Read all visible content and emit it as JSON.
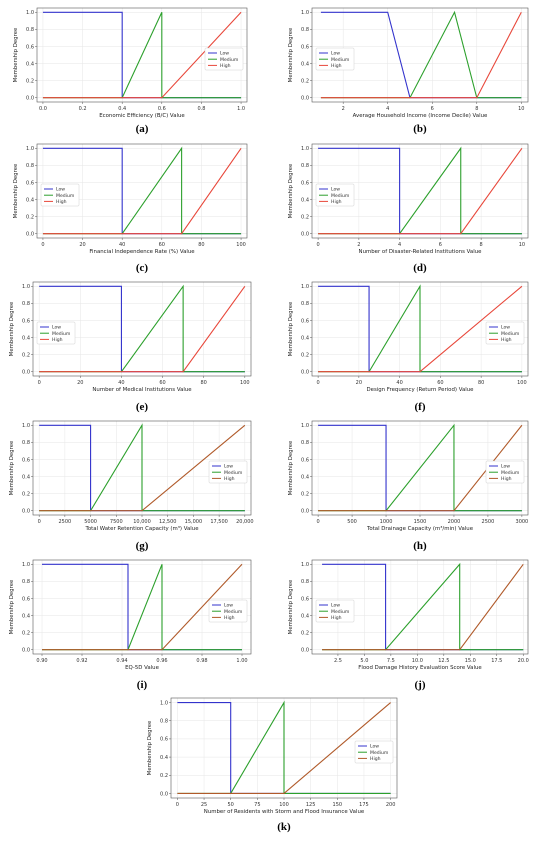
{
  "colors": {
    "low": "#3333cc",
    "medium": "#2ca02c",
    "high": "#e8473a",
    "high_alt": "#b05a2a"
  },
  "chart_data": [
    {
      "label": "(a)",
      "type": "line",
      "xlabel": "Economic Efficiency (B/C) Value",
      "ylabel": "Membership Degree",
      "xlim": [
        -0.03,
        1.03
      ],
      "ylim": [
        -0.05,
        1.05
      ],
      "xticks": [
        0.0,
        0.2,
        0.4,
        0.6,
        0.8,
        1.0
      ],
      "xtick_labels": [
        "0.0",
        "0.2",
        "0.4",
        "0.6",
        "0.8",
        "1.0"
      ],
      "yticks": [
        0.0,
        0.2,
        0.4,
        0.6,
        0.8,
        1.0
      ],
      "ytick_labels": [
        "0.0",
        "0.2",
        "0.4",
        "0.6",
        "0.8",
        "1.0"
      ],
      "legend": "center-right",
      "grid": true,
      "series": [
        {
          "name": "Low",
          "color": "low",
          "x": [
            0.0,
            0.4,
            0.4,
            1.0
          ],
          "y": [
            1,
            1,
            0,
            0
          ]
        },
        {
          "name": "Medium",
          "color": "medium",
          "x": [
            0.0,
            0.4,
            0.6,
            0.6,
            1.0
          ],
          "y": [
            0,
            0,
            1,
            0,
            0
          ]
        },
        {
          "name": "High",
          "color": "high",
          "x": [
            0.0,
            0.6,
            1.0
          ],
          "y": [
            0,
            0,
            1
          ]
        }
      ]
    },
    {
      "label": "(b)",
      "type": "line",
      "xlabel": "Average Household Income (Income Decile) Value",
      "ylabel": "Membership Degree",
      "xlim": [
        0.6,
        10.3
      ],
      "ylim": [
        -0.05,
        1.05
      ],
      "xticks": [
        2,
        4,
        6,
        8,
        10
      ],
      "xtick_labels": [
        "2",
        "4",
        "6",
        "8",
        "10"
      ],
      "yticks": [
        0.0,
        0.2,
        0.4,
        0.6,
        0.8,
        1.0
      ],
      "ytick_labels": [
        "0.0",
        "0.2",
        "0.4",
        "0.6",
        "0.8",
        "1.0"
      ],
      "legend": "center-left",
      "grid": true,
      "series": [
        {
          "name": "Low",
          "color": "low",
          "x": [
            1,
            4,
            5,
            10
          ],
          "y": [
            1,
            1,
            0,
            0
          ]
        },
        {
          "name": "Medium",
          "color": "medium",
          "x": [
            1,
            5,
            7,
            8,
            10
          ],
          "y": [
            0,
            0,
            1,
            0,
            0
          ]
        },
        {
          "name": "High",
          "color": "high",
          "x": [
            1,
            8,
            10
          ],
          "y": [
            0,
            0,
            1
          ]
        }
      ]
    },
    {
      "label": "(c)",
      "type": "line",
      "xlabel": "Financial Independence Rate (%) Value",
      "ylabel": "Membership Degree",
      "xlim": [
        -3,
        103
      ],
      "ylim": [
        -0.05,
        1.05
      ],
      "xticks": [
        0,
        20,
        40,
        60,
        80,
        100
      ],
      "xtick_labels": [
        "0",
        "20",
        "40",
        "60",
        "80",
        "100"
      ],
      "yticks": [
        0.0,
        0.2,
        0.4,
        0.6,
        0.8,
        1.0
      ],
      "ytick_labels": [
        "0.0",
        "0.2",
        "0.4",
        "0.6",
        "0.8",
        "1.0"
      ],
      "legend": "center-left",
      "grid": true,
      "series": [
        {
          "name": "Low",
          "color": "low",
          "x": [
            0,
            40,
            40,
            100
          ],
          "y": [
            1,
            1,
            0,
            0
          ]
        },
        {
          "name": "Medium",
          "color": "medium",
          "x": [
            0,
            40,
            70,
            70,
            100
          ],
          "y": [
            0,
            0,
            1,
            0,
            0
          ]
        },
        {
          "name": "High",
          "color": "high",
          "x": [
            0,
            70,
            100
          ],
          "y": [
            0,
            0,
            1
          ]
        }
      ]
    },
    {
      "label": "(d)",
      "type": "line",
      "xlabel": "Number of Disaster-Related Institutions Value",
      "ylabel": "Membership Degree",
      "xlim": [
        -0.3,
        10.3
      ],
      "ylim": [
        -0.05,
        1.05
      ],
      "xticks": [
        0,
        2,
        4,
        6,
        8,
        10
      ],
      "xtick_labels": [
        "0",
        "2",
        "4",
        "6",
        "8",
        "10"
      ],
      "yticks": [
        0.0,
        0.2,
        0.4,
        0.6,
        0.8,
        1.0
      ],
      "ytick_labels": [
        "0.0",
        "0.2",
        "0.4",
        "0.6",
        "0.8",
        "1.0"
      ],
      "legend": "center-left",
      "grid": true,
      "series": [
        {
          "name": "Low",
          "color": "low",
          "x": [
            0,
            4,
            4,
            10
          ],
          "y": [
            1,
            1,
            0,
            0
          ]
        },
        {
          "name": "Medium",
          "color": "medium",
          "x": [
            0,
            4,
            7,
            7,
            10
          ],
          "y": [
            0,
            0,
            1,
            0,
            0
          ]
        },
        {
          "name": "High",
          "color": "high",
          "x": [
            0,
            7,
            10
          ],
          "y": [
            0,
            0,
            1
          ]
        }
      ]
    },
    {
      "label": "(e)",
      "type": "line",
      "xlabel": "Number of Medical Institutions Value",
      "ylabel": "Membership Degree",
      "xlim": [
        -3,
        103
      ],
      "ylim": [
        -0.05,
        1.05
      ],
      "xticks": [
        0,
        20,
        40,
        60,
        80,
        100
      ],
      "xtick_labels": [
        "0",
        "20",
        "40",
        "60",
        "80",
        "100"
      ],
      "yticks": [
        0.0,
        0.2,
        0.4,
        0.6,
        0.8,
        1.0
      ],
      "ytick_labels": [
        "0.0",
        "0.2",
        "0.4",
        "0.6",
        "0.8",
        "1.0"
      ],
      "legend": "center-left",
      "grid": true,
      "series": [
        {
          "name": "Low",
          "color": "low",
          "x": [
            0,
            40,
            40,
            100
          ],
          "y": [
            1,
            1,
            0,
            0
          ]
        },
        {
          "name": "Medium",
          "color": "medium",
          "x": [
            0,
            40,
            70,
            70,
            100
          ],
          "y": [
            0,
            0,
            1,
            0,
            0
          ]
        },
        {
          "name": "High",
          "color": "high",
          "x": [
            0,
            70,
            100
          ],
          "y": [
            0,
            0,
            1
          ]
        }
      ]
    },
    {
      "label": "(f)",
      "type": "line",
      "xlabel": "Design Frequency (Return Period) Value",
      "ylabel": "Membership Degree",
      "xlim": [
        -3,
        103
      ],
      "ylim": [
        -0.05,
        1.05
      ],
      "xticks": [
        0,
        20,
        40,
        60,
        80,
        100
      ],
      "xtick_labels": [
        "0",
        "20",
        "40",
        "60",
        "80",
        "100"
      ],
      "yticks": [
        0.0,
        0.2,
        0.4,
        0.6,
        0.8,
        1.0
      ],
      "ytick_labels": [
        "0.0",
        "0.2",
        "0.4",
        "0.6",
        "0.8",
        "1.0"
      ],
      "legend": "center-right",
      "grid": true,
      "series": [
        {
          "name": "Low",
          "color": "low",
          "x": [
            0,
            25,
            25,
            100
          ],
          "y": [
            1,
            1,
            0,
            0
          ]
        },
        {
          "name": "Medium",
          "color": "medium",
          "x": [
            0,
            25,
            50,
            50,
            100
          ],
          "y": [
            0,
            0,
            1,
            0,
            0
          ]
        },
        {
          "name": "High",
          "color": "high",
          "x": [
            0,
            50,
            100
          ],
          "y": [
            0,
            0,
            1
          ]
        }
      ]
    },
    {
      "label": "(g)",
      "type": "line",
      "xlabel": "Total Water Retention Capacity (m³) Value",
      "ylabel": "Membership Degree",
      "xlim": [
        -600,
        20600
      ],
      "ylim": [
        -0.05,
        1.05
      ],
      "xticks": [
        0,
        2500,
        5000,
        7500,
        10000,
        12500,
        15000,
        17500,
        20000
      ],
      "xtick_labels": [
        "0",
        "2500",
        "5000",
        "7500",
        "10,000",
        "12,500",
        "15,000",
        "17,500",
        "20,000"
      ],
      "yticks": [
        0.0,
        0.2,
        0.4,
        0.6,
        0.8,
        1.0
      ],
      "ytick_labels": [
        "0.0",
        "0.2",
        "0.4",
        "0.6",
        "0.8",
        "1.0"
      ],
      "legend": "center-right",
      "grid": true,
      "series": [
        {
          "name": "Low",
          "color": "low",
          "x": [
            0,
            5000,
            5000,
            20000
          ],
          "y": [
            1,
            1,
            0,
            0
          ]
        },
        {
          "name": "Medium",
          "color": "medium",
          "x": [
            0,
            5000,
            10000,
            10000,
            20000
          ],
          "y": [
            0,
            0,
            1,
            0,
            0
          ]
        },
        {
          "name": "High",
          "color": "high_alt",
          "x": [
            0,
            10000,
            20000
          ],
          "y": [
            0,
            0,
            1
          ]
        }
      ]
    },
    {
      "label": "(h)",
      "type": "line",
      "xlabel": "Total Drainage Capacity (m³/min) Value",
      "ylabel": "Membership Degree",
      "xlim": [
        -90,
        3090
      ],
      "ylim": [
        -0.05,
        1.05
      ],
      "xticks": [
        0,
        500,
        1000,
        1500,
        2000,
        2500,
        3000
      ],
      "xtick_labels": [
        "0",
        "500",
        "1000",
        "1500",
        "2000",
        "2500",
        "3000"
      ],
      "yticks": [
        0.0,
        0.2,
        0.4,
        0.6,
        0.8,
        1.0
      ],
      "ytick_labels": [
        "0.0",
        "0.2",
        "0.4",
        "0.6",
        "0.8",
        "1.0"
      ],
      "legend": "center-right",
      "grid": true,
      "series": [
        {
          "name": "Low",
          "color": "low",
          "x": [
            0,
            1000,
            1000,
            3000
          ],
          "y": [
            1,
            1,
            0,
            0
          ]
        },
        {
          "name": "Medium",
          "color": "medium",
          "x": [
            0,
            1000,
            2000,
            2000,
            3000
          ],
          "y": [
            0,
            0,
            1,
            0,
            0
          ]
        },
        {
          "name": "High",
          "color": "high_alt",
          "x": [
            0,
            2000,
            3000
          ],
          "y": [
            0,
            0,
            1
          ]
        }
      ]
    },
    {
      "label": "(i)",
      "type": "line",
      "xlabel": "EQ-5D Value",
      "ylabel": "Membership Degree",
      "xlim": [
        0.8955,
        1.0045
      ],
      "ylim": [
        -0.05,
        1.05
      ],
      "xticks": [
        0.9,
        0.92,
        0.94,
        0.96,
        0.98,
        1.0
      ],
      "xtick_labels": [
        "0.90",
        "0.92",
        "0.94",
        "0.96",
        "0.98",
        "1.00"
      ],
      "yticks": [
        0.0,
        0.2,
        0.4,
        0.6,
        0.8,
        1.0
      ],
      "ytick_labels": [
        "0.0",
        "0.2",
        "0.4",
        "0.6",
        "0.8",
        "1.0"
      ],
      "legend": "center-right",
      "grid": true,
      "series": [
        {
          "name": "Low",
          "color": "low",
          "x": [
            0.9,
            0.943,
            0.943,
            1.0
          ],
          "y": [
            1,
            1,
            0,
            0
          ]
        },
        {
          "name": "Medium",
          "color": "medium",
          "x": [
            0.9,
            0.943,
            0.96,
            0.96,
            1.0
          ],
          "y": [
            0,
            0,
            1,
            0,
            0
          ]
        },
        {
          "name": "High",
          "color": "high_alt",
          "x": [
            0.9,
            0.96,
            1.0
          ],
          "y": [
            0,
            0,
            1
          ]
        }
      ]
    },
    {
      "label": "(j)",
      "type": "line",
      "xlabel": "Flood Damage History Evaluation Score Value",
      "ylabel": "Membership Degree",
      "xlim": [
        0.05,
        20.45
      ],
      "ylim": [
        -0.05,
        1.05
      ],
      "xticks": [
        2.5,
        5.0,
        7.5,
        10.0,
        12.5,
        15.0,
        17.5,
        20.0
      ],
      "xtick_labels": [
        "2.5",
        "5.0",
        "7.5",
        "10.0",
        "12.5",
        "15.0",
        "17.5",
        "20.0"
      ],
      "yticks": [
        0.0,
        0.2,
        0.4,
        0.6,
        0.8,
        1.0
      ],
      "ytick_labels": [
        "0.0",
        "0.2",
        "0.4",
        "0.6",
        "0.8",
        "1.0"
      ],
      "legend": "center-left",
      "grid": true,
      "series": [
        {
          "name": "Low",
          "color": "low",
          "x": [
            1,
            7,
            7,
            20
          ],
          "y": [
            1,
            1,
            0,
            0
          ]
        },
        {
          "name": "Medium",
          "color": "medium",
          "x": [
            1,
            7,
            14,
            14,
            20
          ],
          "y": [
            0,
            0,
            1,
            0,
            0
          ]
        },
        {
          "name": "High",
          "color": "high_alt",
          "x": [
            1,
            14,
            20
          ],
          "y": [
            0,
            0,
            1
          ]
        }
      ]
    },
    {
      "label": "(k)",
      "type": "line",
      "xlabel": "Number of Residents with Storm and Flood Insurance Value",
      "ylabel": "Membership Degree",
      "xlim": [
        -6,
        206
      ],
      "ylim": [
        -0.05,
        1.05
      ],
      "xticks": [
        0,
        25,
        50,
        75,
        100,
        125,
        150,
        175,
        200
      ],
      "xtick_labels": [
        "0",
        "25",
        "50",
        "75",
        "100",
        "125",
        "150",
        "175",
        "200"
      ],
      "yticks": [
        0.0,
        0.2,
        0.4,
        0.6,
        0.8,
        1.0
      ],
      "ytick_labels": [
        "0.0",
        "0.2",
        "0.4",
        "0.6",
        "0.8",
        "1.0"
      ],
      "legend": "center-right",
      "grid": true,
      "series": [
        {
          "name": "Low",
          "color": "low",
          "x": [
            0,
            50,
            50,
            200
          ],
          "y": [
            1,
            1,
            0,
            0
          ]
        },
        {
          "name": "Medium",
          "color": "medium",
          "x": [
            0,
            50,
            100,
            100,
            200
          ],
          "y": [
            0,
            0,
            1,
            0,
            0
          ]
        },
        {
          "name": "High",
          "color": "high_alt",
          "x": [
            0,
            100,
            200
          ],
          "y": [
            0,
            0,
            1
          ]
        }
      ]
    }
  ]
}
